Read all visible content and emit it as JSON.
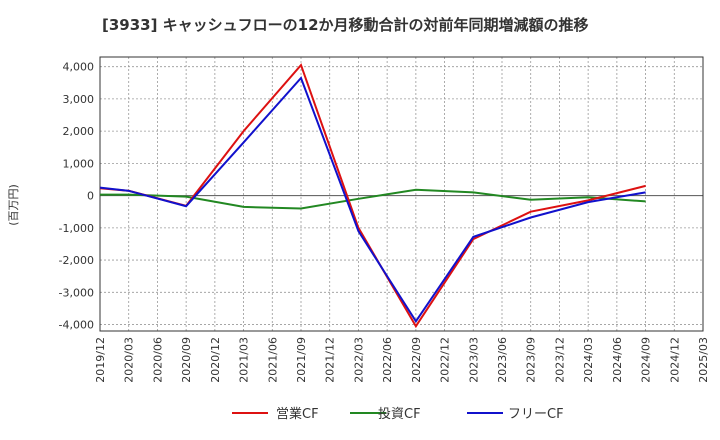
{
  "chart_data": {
    "type": "line",
    "title": "[3933]  キャッシュフローの12か月移動合計の対前年同期増減額の推移",
    "xlabel": "",
    "ylabel": "(百万円)",
    "ylim": [
      -4200,
      4300
    ],
    "y_ticks": [
      4000,
      3000,
      2000,
      1000,
      0,
      -1000,
      -2000,
      -3000,
      -4000
    ],
    "y_tick_labels": [
      "4,000",
      "3,000",
      "2,000",
      "1,000",
      "0",
      "-1,000",
      "-2,000",
      "-3,000",
      "-4,000"
    ],
    "x_tick_labels": [
      "2019/12",
      "2020/03",
      "2020/06",
      "2020/09",
      "2020/12",
      "2021/03",
      "2021/06",
      "2021/09",
      "2021/12",
      "2022/03",
      "2022/06",
      "2022/09",
      "2022/12",
      "2023/03",
      "2023/06",
      "2023/09",
      "2023/12",
      "2024/03",
      "2024/06",
      "2024/09",
      "2024/12",
      "2025/03"
    ],
    "grid": true,
    "legend_position": "bottom",
    "series": [
      {
        "name": "営業CF",
        "color": "#dd1111",
        "points": [
          [
            0,
            230
          ],
          [
            1,
            150
          ],
          [
            3,
            -320
          ],
          [
            5,
            2000
          ],
          [
            7,
            4050
          ],
          [
            9,
            -1000
          ],
          [
            11,
            -4050
          ],
          [
            13,
            -1350
          ],
          [
            15,
            -500
          ],
          [
            17,
            -150
          ],
          [
            19,
            300
          ]
        ]
      },
      {
        "name": "投資CF",
        "color": "#228822",
        "points": [
          [
            0,
            30
          ],
          [
            1,
            30
          ],
          [
            3,
            -30
          ],
          [
            5,
            -350
          ],
          [
            7,
            -400
          ],
          [
            9,
            -100
          ],
          [
            11,
            180
          ],
          [
            13,
            100
          ],
          [
            15,
            -130
          ],
          [
            17,
            -50
          ],
          [
            19,
            -180
          ]
        ]
      },
      {
        "name": "フリーCF",
        "color": "#1111cc",
        "points": [
          [
            0,
            250
          ],
          [
            1,
            150
          ],
          [
            3,
            -330
          ],
          [
            5,
            1650
          ],
          [
            7,
            3650
          ],
          [
            9,
            -1100
          ],
          [
            11,
            -3900
          ],
          [
            13,
            -1280
          ],
          [
            15,
            -680
          ],
          [
            17,
            -200
          ],
          [
            19,
            100
          ]
        ]
      }
    ]
  }
}
